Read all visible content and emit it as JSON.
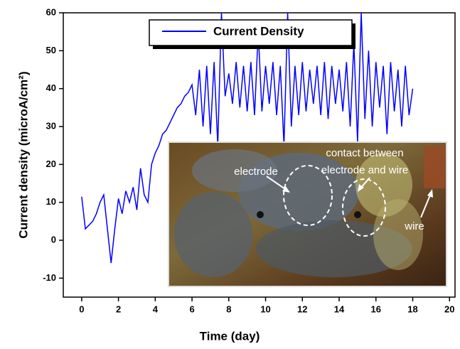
{
  "chart_data": {
    "type": "line",
    "xlabel": "Time (day)",
    "ylabel": "Current density (microA/cm²)",
    "legend": "top-center",
    "xlim": [
      -1,
      20.3
    ],
    "xticks": [
      0,
      2,
      4,
      6,
      8,
      10,
      12,
      14,
      16,
      18,
      20
    ],
    "ylim": [
      -15,
      60
    ],
    "yticks": [
      -10,
      0,
      10,
      20,
      30,
      40,
      50,
      60
    ],
    "x": [
      0,
      0.2,
      0.4,
      0.6,
      0.8,
      1.0,
      1.2,
      1.4,
      1.6,
      1.8,
      2.0,
      2.2,
      2.4,
      2.6,
      2.8,
      3.0,
      3.2,
      3.4,
      3.6,
      3.8,
      4.0,
      4.2,
      4.4,
      4.6,
      4.8,
      5.0,
      5.2,
      5.4,
      5.6,
      5.8,
      6.0,
      6.2,
      6.4,
      6.6,
      6.8,
      7.0,
      7.2,
      7.4,
      7.6,
      7.8,
      8.0,
      8.2,
      8.4,
      8.6,
      8.8,
      9.0,
      9.2,
      9.4,
      9.6,
      9.8,
      10.0,
      10.2,
      10.4,
      10.6,
      10.8,
      11.0,
      11.2,
      11.4,
      11.6,
      11.8,
      12.0,
      12.2,
      12.4,
      12.6,
      12.8,
      13.0,
      13.2,
      13.4,
      13.6,
      13.8,
      14.0,
      14.2,
      14.4,
      14.6,
      14.8,
      15.0,
      15.2,
      15.4,
      15.6,
      15.8,
      16.0,
      16.2,
      16.4,
      16.6,
      16.8,
      17.0,
      17.2,
      17.4,
      17.6,
      17.8,
      18.0
    ],
    "series": [
      {
        "name": "Current Density",
        "color": "#0000ff",
        "values": [
          11.5,
          3,
          4,
          5,
          7,
          10,
          12,
          3,
          -6,
          3,
          11,
          7,
          13,
          10,
          14,
          8,
          19,
          12,
          10,
          20,
          23,
          25,
          28,
          29,
          31,
          33,
          35,
          36,
          38,
          39,
          41,
          33,
          45,
          30,
          46,
          28,
          47,
          25,
          60,
          38,
          44,
          36,
          47,
          35,
          46,
          34,
          47,
          33,
          55,
          34,
          46,
          36,
          47,
          33,
          46,
          25,
          60,
          30,
          46,
          33,
          47,
          34,
          45,
          36,
          46,
          33,
          47,
          32,
          46,
          36,
          45,
          34,
          47,
          30,
          52,
          26,
          60,
          32,
          50,
          30,
          47,
          35,
          46,
          28,
          47,
          34,
          45,
          30,
          46,
          33,
          40
        ]
      }
    ],
    "annotations": [
      "electrode",
      "contact between",
      "electrode and wire",
      "wire"
    ]
  }
}
